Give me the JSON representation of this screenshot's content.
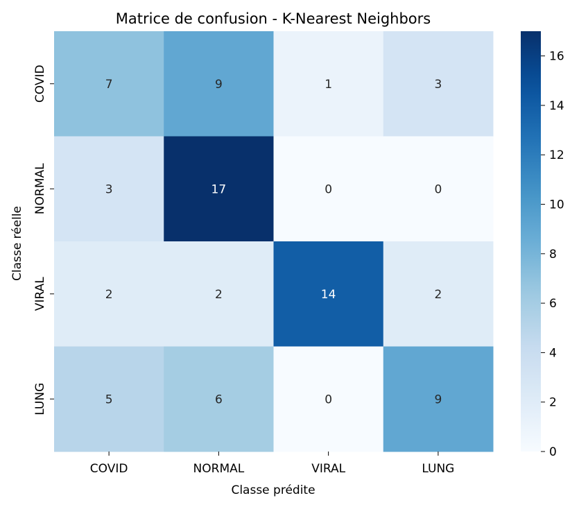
{
  "chart_data": {
    "type": "heatmap",
    "title": "Matrice de confusion - K-Nearest Neighbors",
    "xlabel": "Classe prédite",
    "ylabel": "Classe réelle",
    "x_categories": [
      "COVID",
      "NORMAL",
      "VIRAL",
      "LUNG"
    ],
    "y_categories": [
      "COVID",
      "NORMAL",
      "VIRAL",
      "LUNG"
    ],
    "values": [
      [
        7,
        9,
        1,
        3
      ],
      [
        3,
        17,
        0,
        0
      ],
      [
        2,
        2,
        14,
        2
      ],
      [
        5,
        6,
        0,
        9
      ]
    ],
    "colormap": "Blues",
    "colorbar": {
      "range": [
        0,
        17
      ],
      "ticks": [
        0,
        2,
        4,
        6,
        8,
        10,
        12,
        14,
        16
      ]
    },
    "annotations": true
  }
}
